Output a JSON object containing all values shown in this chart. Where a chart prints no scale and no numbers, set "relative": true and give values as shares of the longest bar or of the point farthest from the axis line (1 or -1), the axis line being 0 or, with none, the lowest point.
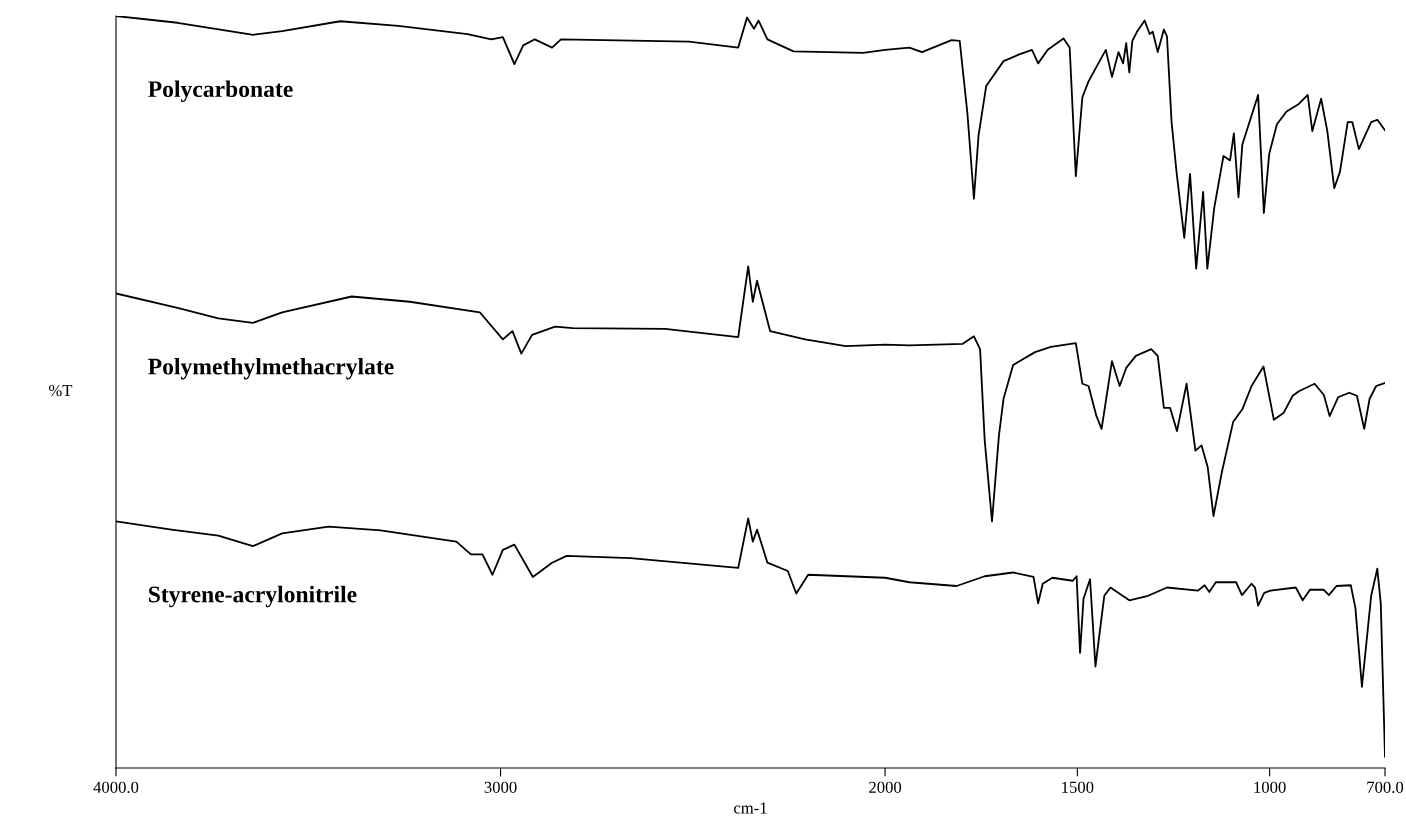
{
  "chart_data": {
    "type": "line",
    "relative": true,
    "xlabel": "cm-1",
    "ylabel": "%T",
    "xlim": [
      4000,
      700
    ],
    "xticks": [
      {
        "value": 4000,
        "label": "4000.0"
      },
      3000,
      2000,
      1500,
      1000,
      {
        "value": 700,
        "label": "700.0"
      }
    ],
    "grid": false,
    "legend": false,
    "marker": "none",
    "line_style": "solid",
    "series": [
      {
        "name": "Polycarbonate",
        "color": "#000000",
        "x": [
          4000,
          3840,
          3643,
          3568,
          3417,
          3266,
          3086,
          3024,
          2994,
          2964,
          2941,
          2911,
          2866,
          2843,
          2510,
          2382,
          2359,
          2341,
          2329,
          2306,
          2238,
          2057,
          2000,
          1937,
          1904,
          1827,
          1806,
          1786,
          1769,
          1757,
          1737,
          1692,
          1651,
          1618,
          1602,
          1577,
          1536,
          1520,
          1504,
          1487,
          1471,
          1455,
          1426,
          1410,
          1393,
          1381,
          1373,
          1365,
          1357,
          1345,
          1325,
          1312,
          1304,
          1291,
          1275,
          1267,
          1255,
          1242,
          1222,
          1207,
          1191,
          1173,
          1162,
          1144,
          1120,
          1103,
          1093,
          1081,
          1071,
          1030,
          1015,
          1001,
          981,
          956,
          924,
          901,
          889,
          866,
          850,
          832,
          817,
          797,
          785,
          768,
          736,
          720,
          700
        ],
        "values": [
          1,
          0.991,
          0.975,
          0.98,
          0.993,
          0.987,
          0.976,
          0.969,
          0.972,
          0.936,
          0.961,
          0.969,
          0.958,
          0.969,
          0.966,
          0.958,
          0.998,
          0.983,
          0.994,
          0.969,
          0.953,
          0.951,
          0.955,
          0.958,
          0.952,
          0.968,
          0.967,
          0.871,
          0.757,
          0.841,
          0.907,
          0.94,
          0.949,
          0.955,
          0.937,
          0.955,
          0.97,
          0.958,
          0.787,
          0.892,
          0.913,
          0.928,
          0.955,
          0.919,
          0.952,
          0.937,
          0.964,
          0.925,
          0.967,
          0.979,
          0.994,
          0.976,
          0.979,
          0.952,
          0.982,
          0.973,
          0.859,
          0.792,
          0.705,
          0.79,
          0.664,
          0.766,
          0.664,
          0.745,
          0.814,
          0.808,
          0.844,
          0.759,
          0.829,
          0.895,
          0.738,
          0.817,
          0.856,
          0.873,
          0.883,
          0.895,
          0.847,
          0.89,
          0.847,
          0.771,
          0.793,
          0.859,
          0.859,
          0.823,
          0.859,
          0.862,
          0.848
        ]
      },
      {
        "name": "Polymethylmethacrylate",
        "color": "#000000",
        "x": [
          4000,
          3840,
          3734,
          3644,
          3568,
          3387,
          3236,
          3054,
          2994,
          2969,
          2946,
          2918,
          2858,
          2812,
          2572,
          2382,
          2356,
          2344,
          2333,
          2299,
          2208,
          2102,
          2000,
          1937,
          1798,
          1769,
          1753,
          1741,
          1722,
          1704,
          1692,
          1667,
          1610,
          1569,
          1504,
          1487,
          1471,
          1451,
          1437,
          1410,
          1390,
          1373,
          1348,
          1308,
          1291,
          1275,
          1259,
          1241,
          1216,
          1193,
          1177,
          1161,
          1146,
          1124,
          1095,
          1071,
          1047,
          1016,
          989,
          964,
          940,
          924,
          883,
          859,
          844,
          822,
          793,
          773,
          754,
          740,
          723,
          700
        ],
        "values": [
          0.631,
          0.612,
          0.598,
          0.592,
          0.606,
          0.627,
          0.62,
          0.606,
          0.57,
          0.581,
          0.551,
          0.576,
          0.587,
          0.585,
          0.584,
          0.573,
          0.667,
          0.62,
          0.648,
          0.581,
          0.57,
          0.561,
          0.563,
          0.562,
          0.564,
          0.574,
          0.557,
          0.436,
          0.328,
          0.442,
          0.491,
          0.536,
          0.553,
          0.56,
          0.565,
          0.511,
          0.508,
          0.469,
          0.451,
          0.541,
          0.508,
          0.532,
          0.548,
          0.557,
          0.548,
          0.479,
          0.479,
          0.448,
          0.511,
          0.422,
          0.429,
          0.4,
          0.335,
          0.394,
          0.46,
          0.477,
          0.508,
          0.534,
          0.463,
          0.472,
          0.495,
          0.501,
          0.511,
          0.496,
          0.468,
          0.493,
          0.499,
          0.495,
          0.451,
          0.491,
          0.508,
          0.512
        ]
      },
      {
        "name": "Styrene-acrylonitrile",
        "color": "#000000",
        "x": [
          4000,
          3856,
          3734,
          3644,
          3568,
          3447,
          3312,
          3115,
          3077,
          3047,
          3021,
          2994,
          2964,
          2916,
          2866,
          2828,
          2662,
          2382,
          2356,
          2344,
          2333,
          2306,
          2253,
          2231,
          2200,
          2000,
          1937,
          1814,
          1741,
          1667,
          1614,
          1602,
          1590,
          1565,
          1512,
          1502,
          1493,
          1484,
          1467,
          1453,
          1430,
          1414,
          1365,
          1316,
          1267,
          1186,
          1169,
          1157,
          1140,
          1087,
          1072,
          1047,
          1038,
          1030,
          1014,
          998,
          932,
          914,
          895,
          859,
          846,
          826,
          789,
          777,
          760,
          736,
          720,
          711,
          700
        ],
        "values": [
          0.328,
          0.317,
          0.309,
          0.295,
          0.312,
          0.321,
          0.316,
          0.301,
          0.284,
          0.284,
          0.257,
          0.29,
          0.297,
          0.254,
          0.273,
          0.282,
          0.279,
          0.266,
          0.332,
          0.301,
          0.317,
          0.273,
          0.262,
          0.232,
          0.257,
          0.253,
          0.247,
          0.242,
          0.255,
          0.26,
          0.254,
          0.219,
          0.245,
          0.253,
          0.249,
          0.255,
          0.153,
          0.225,
          0.251,
          0.135,
          0.229,
          0.24,
          0.223,
          0.229,
          0.24,
          0.236,
          0.243,
          0.234,
          0.247,
          0.247,
          0.23,
          0.245,
          0.24,
          0.216,
          0.233,
          0.236,
          0.24,
          0.223,
          0.237,
          0.237,
          0.23,
          0.242,
          0.243,
          0.213,
          0.108,
          0.229,
          0.265,
          0.219,
          0.015
        ]
      }
    ]
  }
}
